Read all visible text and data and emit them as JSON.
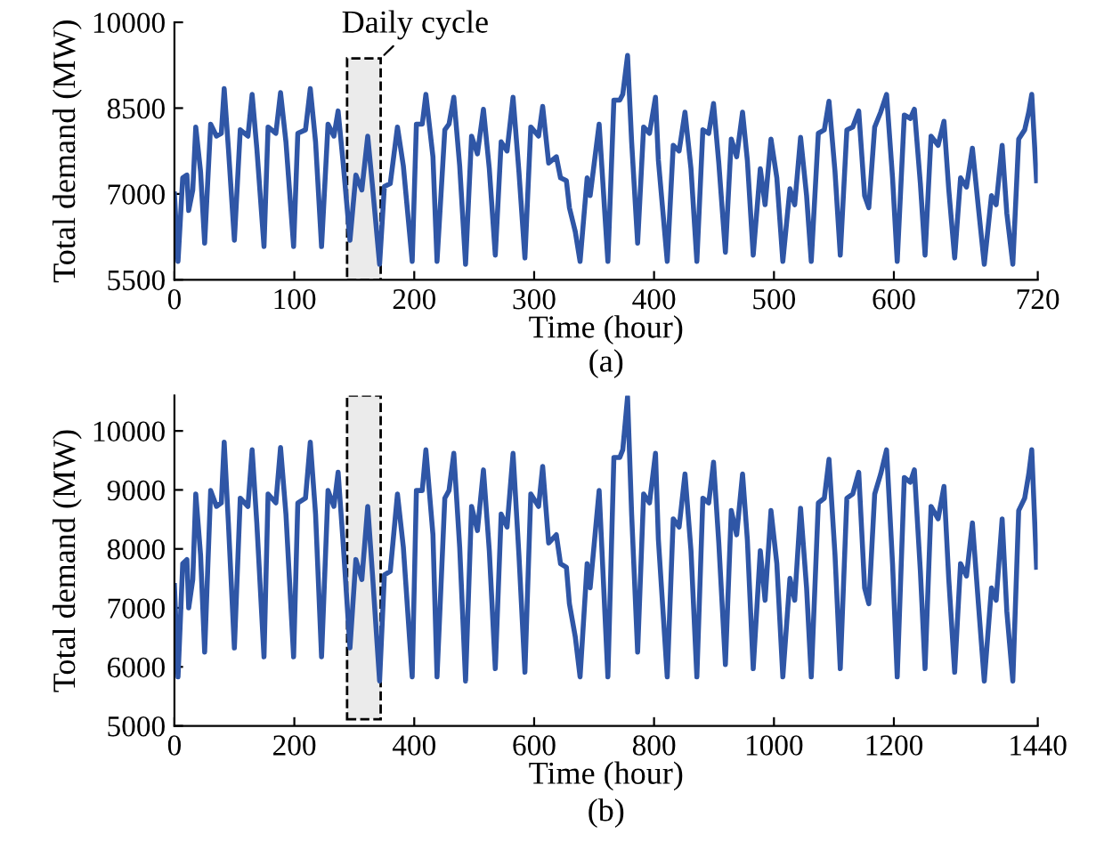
{
  "chart_data": [
    {
      "type": "line",
      "xlabel": "Time (hour)",
      "ylabel": "Total demand (MW)",
      "annotations": [
        "(a)"
      ],
      "xlim": [
        0,
        720
      ],
      "xticks": [
        0,
        100,
        200,
        300,
        400,
        500,
        600,
        720
      ],
      "ylim": [
        5500,
        10000
      ],
      "yticks": [
        5500,
        7000,
        8500,
        10000
      ],
      "grid": false,
      "legend": false,
      "line_style": "solid",
      "bands": [
        {
          "axis": "x",
          "from": 144,
          "to": 172,
          "label": "Daily cycle",
          "color": "#000000"
        }
      ],
      "series": [
        {
          "color": "#2f56a6",
          "x": [
            0,
            3,
            6.9,
            10.4,
            11.9,
            15.3,
            17.8,
            21.8,
            25.2,
            30.2,
            35.1,
            39.1,
            41.5,
            45,
            50,
            54.9,
            61.3,
            64.8,
            68.7,
            74.7,
            78.1,
            84.6,
            88.5,
            93,
            99.4,
            102.9,
            109.3,
            113.3,
            117.7,
            122.7,
            128.1,
            133,
            136.5,
            140.5,
            146.4,
            151.3,
            156.3,
            161.2,
            165.2,
            171.1,
            175.1,
            180,
            186,
            190.9,
            198.3,
            201.8,
            206.7,
            209.7,
            215.6,
            219,
            225.5,
            229,
            233,
            237.9,
            242.8,
            247.8,
            252.7,
            257.7,
            262.6,
            267.6,
            272.5,
            277.4,
            282.4,
            287.3,
            292.3,
            297.2,
            303.7,
            307.1,
            312.1,
            318.5,
            322,
            326.9,
            329.4,
            334.3,
            338.3,
            344.2,
            346.7,
            354.2,
            361.5,
            366.5,
            371.4,
            373.9,
            377.9,
            381.3,
            386.3,
            391.3,
            396.2,
            401.2,
            403.6,
            411,
            416,
            420.9,
            425.8,
            430.8,
            435.7,
            440.7,
            445.6,
            449.6,
            454,
            459.5,
            464.4,
            468.9,
            473.8,
            477.8,
            482.7,
            488.6,
            492.6,
            497.5,
            502.4,
            507.4,
            513.3,
            517.3,
            522.2,
            527.2,
            531.1,
            537,
            542,
            545.9,
            550.9,
            555.3,
            560.8,
            565.7,
            570.7,
            575.6,
            579.1,
            584,
            589,
            593.9,
            598.9,
            602.8,
            608.7,
            613.7,
            617.1,
            622.1,
            626,
            631,
            636.9,
            641.8,
            645.8,
            650.7,
            655.6,
            660.6,
            665.5,
            670.5,
            675.4,
            681.4,
            685.3,
            690.3,
            694.2,
            699.2,
            704.1,
            709.1,
            712.5,
            715,
            719
          ],
          "values": [
            7000,
            5820,
            7280,
            7330,
            6710,
            7070,
            8170,
            7390,
            6140,
            8220,
            8010,
            8060,
            8840,
            7800,
            6190,
            8120,
            8010,
            8740,
            7800,
            6080,
            8170,
            8060,
            8770,
            7910,
            6080,
            8060,
            8120,
            8840,
            7910,
            6080,
            8220,
            8010,
            8450,
            7590,
            6190,
            7330,
            7070,
            8010,
            7130,
            5770,
            7130,
            7180,
            8170,
            7490,
            5820,
            8220,
            8220,
            8740,
            7650,
            5820,
            8120,
            8220,
            8690,
            7490,
            5770,
            8010,
            7700,
            8480,
            7440,
            5930,
            7910,
            7750,
            8690,
            7390,
            5880,
            8170,
            8010,
            8530,
            7540,
            7650,
            7280,
            7230,
            6760,
            6340,
            5820,
            7280,
            6970,
            8220,
            5820,
            8640,
            8640,
            8740,
            9420,
            7910,
            6140,
            8170,
            8060,
            8690,
            7590,
            5820,
            7850,
            7750,
            8430,
            7440,
            5820,
            8120,
            8060,
            8580,
            7540,
            5980,
            7960,
            7650,
            8430,
            7590,
            5930,
            7440,
            6810,
            7960,
            7280,
            5820,
            7090,
            6810,
            7990,
            6970,
            5820,
            8060,
            8120,
            8620,
            7390,
            5930,
            8120,
            8170,
            8450,
            6970,
            6760,
            8170,
            8430,
            8740,
            7280,
            5820,
            8380,
            8320,
            8480,
            7180,
            5930,
            8010,
            7850,
            8270,
            7070,
            5880,
            7280,
            7120,
            7800,
            6760,
            5770,
            6970,
            6810,
            7850,
            6660,
            5770,
            7960,
            8120,
            8430,
            8740,
            7230
          ]
        }
      ]
    },
    {
      "type": "line",
      "xlabel": "Time (hour)",
      "ylabel": "Total demand (MW)",
      "annotations": [
        "(b)"
      ],
      "xlim": [
        0,
        1440
      ],
      "xticks": [
        0,
        200,
        400,
        600,
        800,
        1000,
        1200,
        1440
      ],
      "ylim": [
        5000,
        10600
      ],
      "yticks": [
        5000,
        6000,
        7000,
        8000,
        9000,
        10000
      ],
      "grid": false,
      "legend": false,
      "line_style": "solid",
      "bands": [
        {
          "axis": "x",
          "from": 288,
          "to": 344,
          "color": "#000000"
        }
      ],
      "series": [
        {
          "color": "#2f56a6",
          "x": [
            0,
            6,
            13.8,
            20.8,
            23.8,
            30.6,
            35.6,
            43.6,
            50.4,
            60.4,
            70.2,
            78.2,
            83,
            90,
            100,
            109.8,
            122.6,
            129.6,
            137.4,
            149.4,
            156.2,
            169.2,
            177,
            186,
            198.8,
            205.8,
            218.6,
            226.6,
            235.4,
            245.4,
            256.2,
            266,
            273,
            281,
            292.8,
            302.6,
            312.6,
            322.4,
            330.4,
            342.2,
            350.2,
            360,
            372,
            381.8,
            396.6,
            403.6,
            413.4,
            419.4,
            431.2,
            438,
            451,
            458,
            466,
            475.8,
            485.6,
            495.6,
            505.4,
            515.4,
            525.2,
            535.2,
            545,
            554.8,
            564.8,
            574.6,
            584.6,
            594.4,
            607.4,
            614.2,
            624.2,
            637,
            644,
            653.8,
            658.8,
            668.6,
            676.6,
            688.4,
            693.4,
            708.4,
            723,
            733,
            742.8,
            747.8,
            755.8,
            762.6,
            772.6,
            782.6,
            792.4,
            802.4,
            807.2,
            822,
            832,
            841.8,
            851.6,
            861.6,
            871.4,
            881.4,
            891.2,
            899.2,
            908,
            919,
            928.8,
            937.8,
            947.6,
            955.6,
            965.4,
            977.2,
            985.2,
            995,
            1004.8,
            1014.8,
            1026.6,
            1034.6,
            1044.4,
            1054.4,
            1062.2,
            1074,
            1084,
            1091.8,
            1101.8,
            1110.6,
            1121.6,
            1131.4,
            1141.4,
            1151.2,
            1158.2,
            1168,
            1178,
            1187.8,
            1197.8,
            1205.6,
            1217.4,
            1227.4,
            1234.2,
            1244.2,
            1252,
            1262,
            1273.8,
            1283.6,
            1291.6,
            1301.4,
            1311.2,
            1321.2,
            1331,
            1341,
            1350.8,
            1362.8,
            1370.6,
            1380.6,
            1388.4,
            1398.4,
            1408.2,
            1418.2,
            1425,
            1430,
            1438
          ],
          "values": [
            7380,
            5830,
            7750,
            7820,
            7000,
            7480,
            8930,
            7900,
            6250,
            8990,
            8720,
            8780,
            9810,
            8440,
            6320,
            8860,
            8720,
            9680,
            8440,
            6170,
            8930,
            8780,
            9720,
            8590,
            6170,
            8780,
            8860,
            9810,
            8590,
            6170,
            8990,
            8720,
            9300,
            8160,
            6320,
            7820,
            7480,
            8720,
            7560,
            5760,
            7560,
            7620,
            8930,
            8030,
            5830,
            8990,
            8990,
            9680,
            8240,
            5830,
            8860,
            8990,
            9620,
            8030,
            5760,
            8720,
            8310,
            9340,
            7970,
            5970,
            8590,
            8370,
            9620,
            7900,
            5910,
            8930,
            8720,
            9400,
            8100,
            8240,
            7750,
            7690,
            7070,
            6510,
            5830,
            7750,
            7340,
            8990,
            5830,
            9550,
            9550,
            9680,
            10580,
            8590,
            6250,
            8930,
            8780,
            9620,
            8160,
            5830,
            8510,
            8370,
            9270,
            7970,
            5830,
            8860,
            8780,
            9470,
            8100,
            6040,
            8650,
            8240,
            9270,
            8160,
            5970,
            7970,
            7130,
            8650,
            7750,
            5830,
            7500,
            7130,
            8690,
            7340,
            5830,
            8780,
            8860,
            9520,
            7900,
            5970,
            8860,
            8930,
            9300,
            7340,
            7070,
            8930,
            9270,
            9680,
            7750,
            5830,
            9210,
            9130,
            9340,
            7620,
            5970,
            8720,
            8510,
            9060,
            7480,
            5910,
            7750,
            7540,
            8440,
            7070,
            5760,
            7340,
            7130,
            8510,
            6940,
            5760,
            8650,
            8860,
            9270,
            9680,
            7690
          ]
        }
      ]
    }
  ]
}
